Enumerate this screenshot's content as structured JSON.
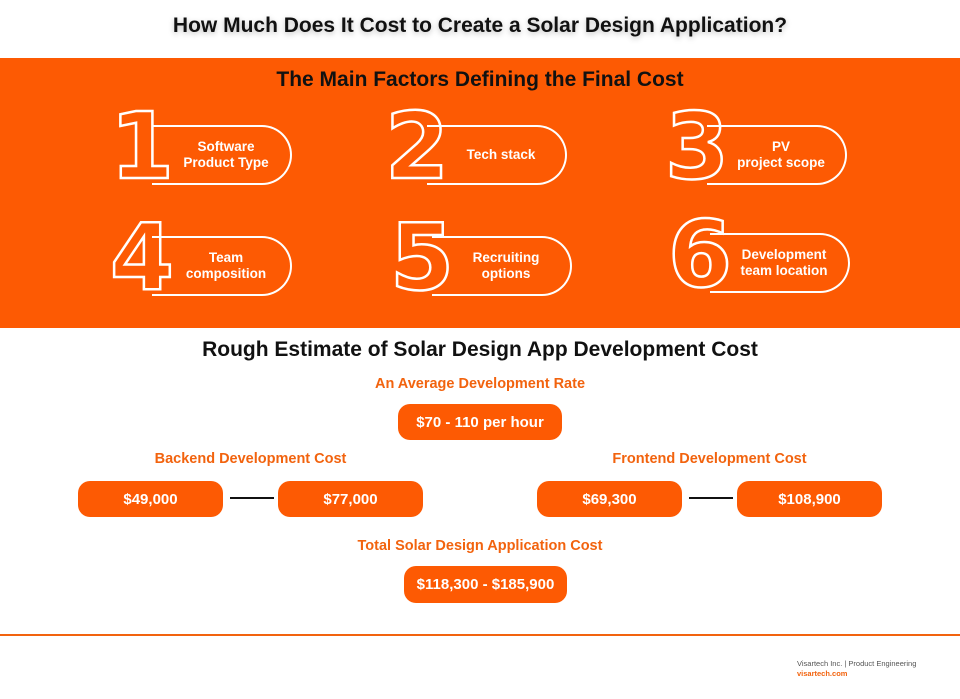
{
  "title": "How Much Does It Cost to Create a Solar Design Application?",
  "factors_heading": "The Main Factors Defining the Final Cost",
  "factors": [
    {
      "number": "1",
      "label": "Software\nProduct Type"
    },
    {
      "number": "2",
      "label": "Tech stack"
    },
    {
      "number": "3",
      "label": "PV\nproject scope"
    },
    {
      "number": "4",
      "label": "Team\ncomposition"
    },
    {
      "number": "5",
      "label": "Recruiting\noptions"
    },
    {
      "number": "6",
      "label": "Development\nteam location"
    }
  ],
  "estimate_heading": "Rough Estimate of Solar Design App Development Cost",
  "rate": {
    "label": "An Average Development Rate",
    "value": "$70 - 110 per hour"
  },
  "backend": {
    "label": "Backend Development Cost",
    "min": "$49,000",
    "max": "$77,000"
  },
  "frontend": {
    "label": "Frontend Development Cost",
    "min": "$69,300",
    "max": "$108,900"
  },
  "total": {
    "label": "Total Solar Design Application Cost",
    "value": "$118,300 - $185,900"
  },
  "footer": {
    "company": "Visartech Inc. | Product Engineering",
    "url": "visartech.com"
  },
  "colors": {
    "accent": "#fd5a03",
    "label": "#f2630e"
  }
}
